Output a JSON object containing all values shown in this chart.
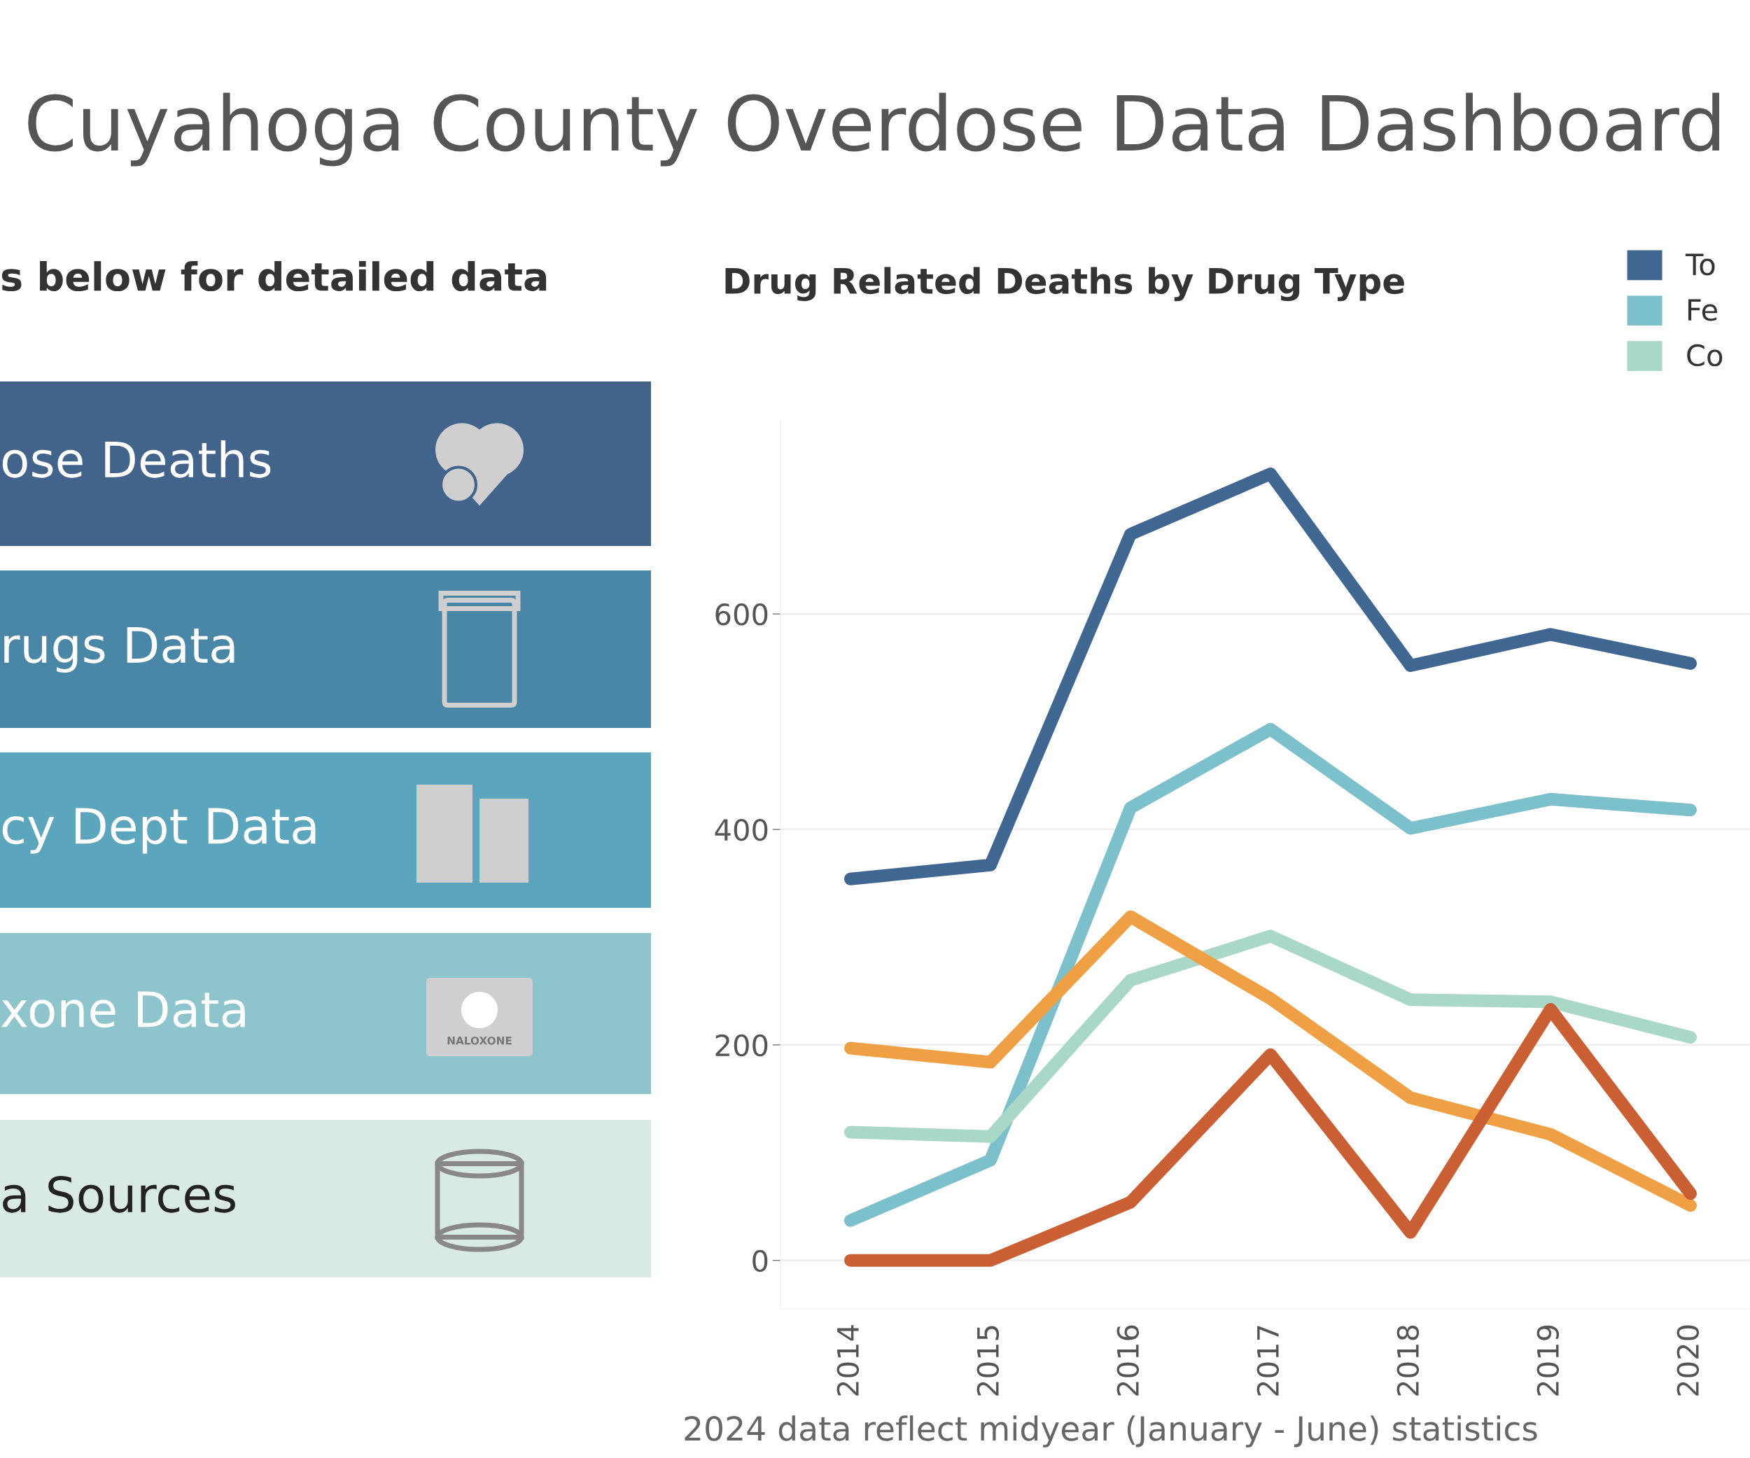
{
  "chart_data": [
    {
      "type": "other",
      "title": "Cuyahoga County Overdose Data Dashboard",
      "subtitle": "s below for detailed data",
      "categories": [
        "ose Deaths",
        "rugs Data",
        "cy Dept Data",
        "xone Data",
        "a Sources"
      ],
      "colors": [
        "#43648a",
        "#4a86a6",
        "#5ba6bc",
        "#8ec5cc",
        "#d8e9e6"
      ],
      "annotations": [
        "NALOXONE"
      ]
    },
    {
      "type": "line",
      "title": "Drug Related Deaths by Drug Type",
      "categories": [
        "2014",
        "2015",
        "2016",
        "2017",
        "2018",
        "2019",
        "2020"
      ],
      "series": [
        {
          "name": "To",
          "color": "#3f6791",
          "values": [
            354,
            367,
            674,
            730,
            552,
            581,
            554
          ]
        },
        {
          "name": "Fe",
          "color": "#7cc0cb",
          "values": [
            37,
            93,
            420,
            493,
            401,
            428,
            418
          ]
        },
        {
          "name": "Co",
          "color": "#a9d8c6",
          "values": [
            119,
            115,
            260,
            301,
            242,
            240,
            207
          ]
        },
        {
          "color": "#f0a044",
          "values": [
            197,
            184,
            319,
            243,
            151,
            117,
            51
          ]
        },
        {
          "color": "#c95f33",
          "values": [
            0,
            0,
            54,
            191,
            26,
            233,
            62
          ]
        }
      ],
      "ylim": [
        -45,
        780
      ],
      "yticks": [
        0,
        200,
        400,
        600
      ],
      "grid": "y",
      "legend": "top right",
      "line_style": "solid",
      "annotations": [
        "2024 data reflect midyear (January - June) statistics"
      ]
    }
  ]
}
